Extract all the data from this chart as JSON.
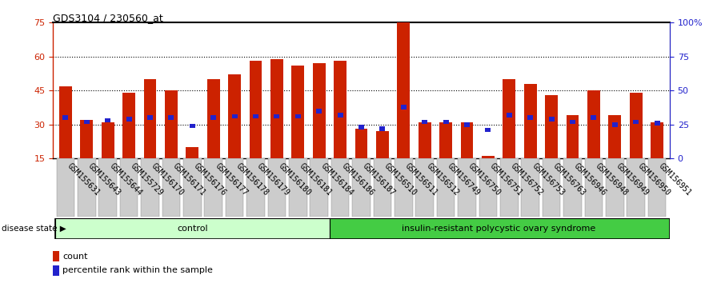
{
  "title": "GDS3104 / 230560_at",
  "samples": [
    "GSM155631",
    "GSM155643",
    "GSM155644",
    "GSM155729",
    "GSM156170",
    "GSM156171",
    "GSM156176",
    "GSM156177",
    "GSM156178",
    "GSM156179",
    "GSM156180",
    "GSM156181",
    "GSM156184",
    "GSM156186",
    "GSM156187",
    "GSM156510",
    "GSM156511",
    "GSM156512",
    "GSM156749",
    "GSM156750",
    "GSM156751",
    "GSM156752",
    "GSM156753",
    "GSM156763",
    "GSM156946",
    "GSM156948",
    "GSM156949",
    "GSM156950",
    "GSM156951"
  ],
  "count_values": [
    47,
    32,
    31,
    44,
    50,
    45,
    20,
    50,
    52,
    58,
    59,
    56,
    57,
    58,
    28,
    27,
    75,
    31,
    31,
    31,
    16,
    50,
    48,
    43,
    34,
    45,
    34,
    44,
    31
  ],
  "percentile_values": [
    30,
    27,
    28,
    29,
    30,
    30,
    24,
    30,
    31,
    31,
    31,
    31,
    35,
    32,
    23,
    22,
    38,
    27,
    27,
    25,
    21,
    32,
    30,
    29,
    27,
    30,
    25,
    27,
    26
  ],
  "control_count": 13,
  "group_labels": [
    "control",
    "insulin-resistant polycystic ovary syndrome"
  ],
  "bar_color": "#cc2200",
  "percentile_color": "#2222cc",
  "ylim_left": [
    15,
    75
  ],
  "ylim_right": [
    0,
    100
  ],
  "yticks_left": [
    15,
    30,
    45,
    60,
    75
  ],
  "yticks_right": [
    0,
    25,
    50,
    75,
    100
  ],
  "ytick_labels_right": [
    "0",
    "25",
    "50",
    "75",
    "100%"
  ],
  "hlines": [
    30,
    45,
    60
  ],
  "tick_label_size": 7,
  "bar_width": 0.6,
  "disease_state_label": "disease state"
}
